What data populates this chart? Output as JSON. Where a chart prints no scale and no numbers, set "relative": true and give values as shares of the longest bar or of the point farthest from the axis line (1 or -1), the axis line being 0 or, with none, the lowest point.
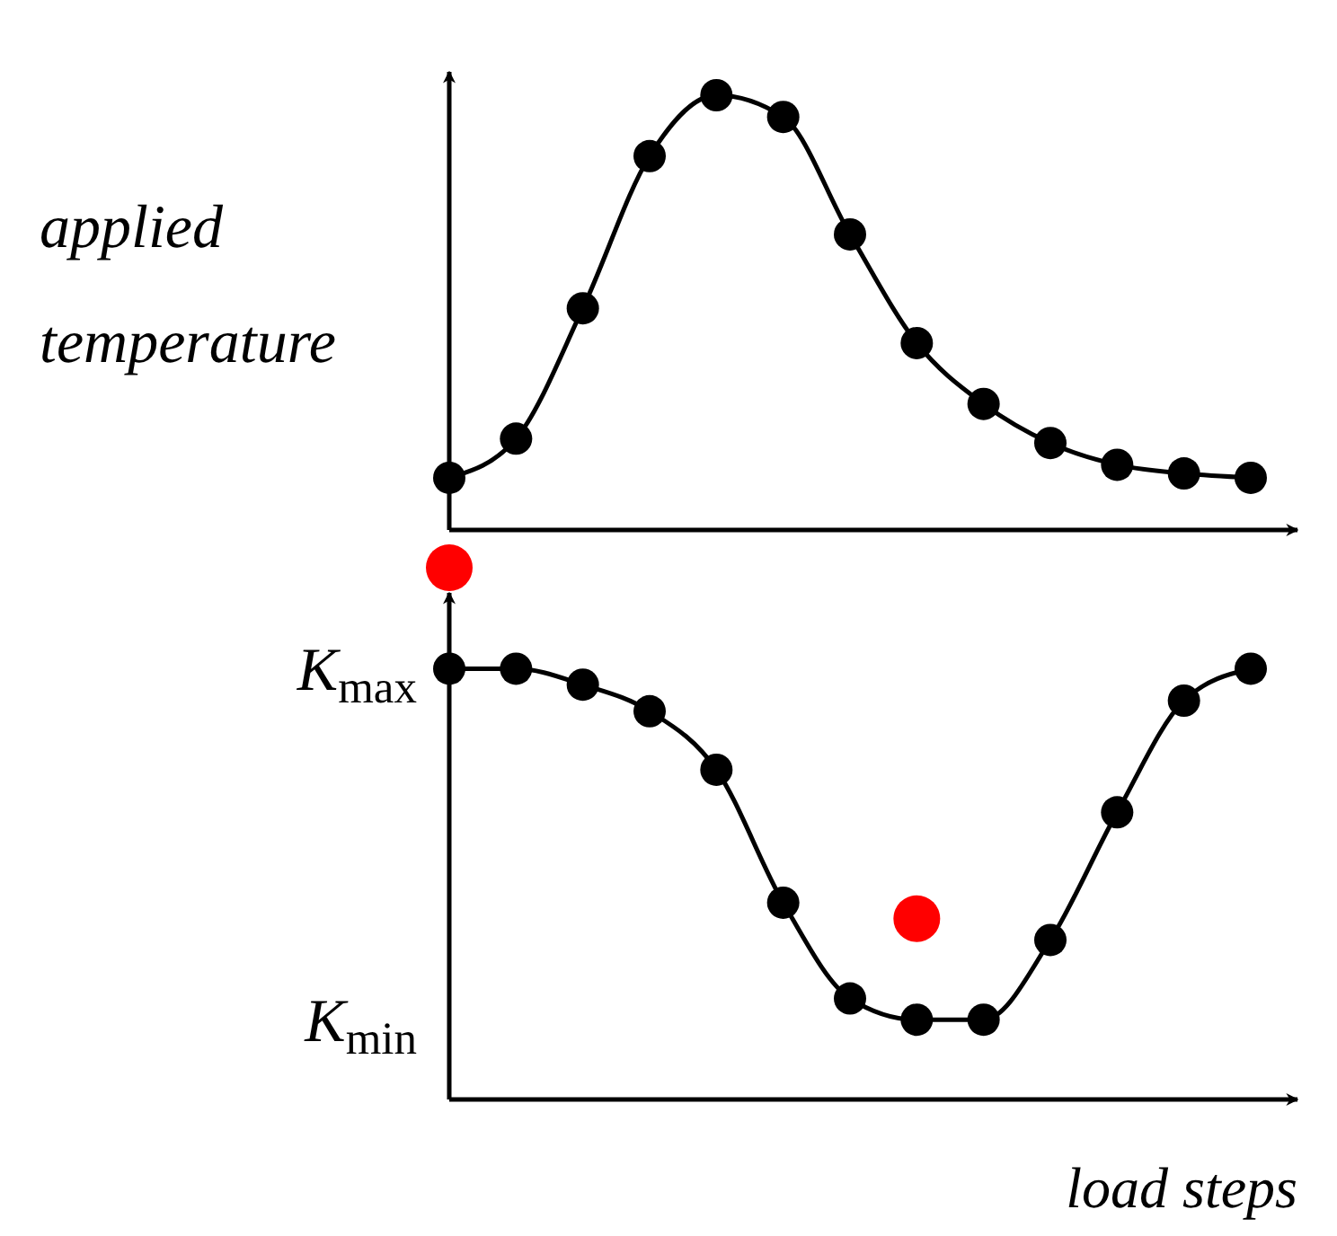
{
  "chart_data": [
    {
      "type": "line",
      "relative": true,
      "categories": [
        null,
        null,
        null,
        null,
        null,
        null,
        null,
        null,
        null,
        null,
        null,
        null,
        null
      ],
      "ylabel": "applied temperature",
      "marker": "circle",
      "series": [
        {
          "color": "#000000",
          "values": [
            0.12,
            0.21,
            0.51,
            0.86,
            1,
            0.95,
            0.68,
            0.43,
            0.29,
            0.2,
            0.15,
            0.13,
            0.12
          ]
        }
      ]
    },
    {
      "type": "line",
      "relative": true,
      "categories": [
        null,
        null,
        null,
        null,
        null,
        null,
        null,
        null,
        null,
        null,
        null,
        null,
        null
      ],
      "xlabel": "load steps",
      "marker": "circle",
      "annotations": [
        "K$_{max}$",
        "K$_{min}$"
      ],
      "series": [
        {
          "color": "#000000",
          "values": [
            0.81,
            0.81,
            0.78,
            0.73,
            0.62,
            0.37,
            0.19,
            0.15,
            0.15,
            0.3,
            0.54,
            0.75,
            0.81
          ]
        },
        {
          "type": "scatter",
          "color": "#ff0000",
          "values": [
            1,
            null,
            null,
            null,
            null,
            null,
            null,
            0.34,
            null,
            null,
            null,
            null,
            null
          ]
        }
      ]
    }
  ]
}
